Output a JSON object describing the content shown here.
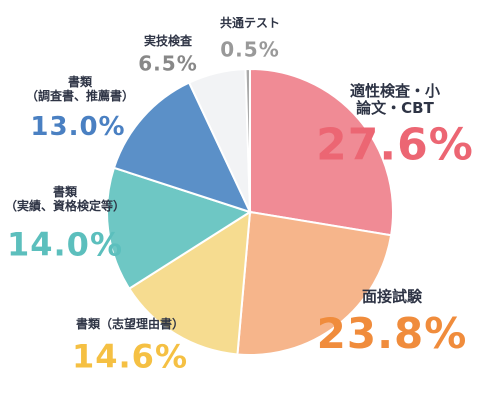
{
  "chart_data": {
    "type": "pie",
    "categories": [
      "適性検査・小論文・CBT",
      "面接試験",
      "書類（志望理由書）",
      "書類\n（実績、資格検定等）",
      "書類\n（調査書、推薦書）",
      "実技検査",
      "共通テスト"
    ],
    "values": [
      27.6,
      23.8,
      14.6,
      14.0,
      13.0,
      6.5,
      0.5
    ],
    "value_labels": [
      "27.6%",
      "23.8%",
      "14.6%",
      "14.0%",
      "13.0%",
      "6.5%",
      "0.5%"
    ],
    "colors": [
      "#f08b95",
      "#f6b58b",
      "#f6dc90",
      "#6ec7c4",
      "#5b90c8",
      "#f2f3f5",
      "#aaaaaa"
    ],
    "label_colors": [
      "#ec6673",
      "#f08c3c",
      "#f5c043",
      "#5cbfbd",
      "#4a80c2",
      "#888888",
      "#999999"
    ]
  }
}
